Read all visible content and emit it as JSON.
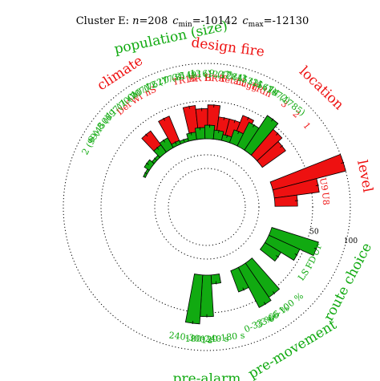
{
  "title_parts": {
    "prefix": "Cluster E: ",
    "n_label": "n",
    "n_value": "=208",
    "cmin_label": "c",
    "cmin_sub": "min",
    "cmin_value": "=-10142",
    "cmax_label": "c",
    "cmax_sub": "max",
    "cmax_value": "=-12130"
  },
  "colors": {
    "red": "#ee1111",
    "green": "#11aa11"
  },
  "chart_data": {
    "type": "radial-bar",
    "title": "Cluster E: n=208 cmin=-10142 cmax=-12130",
    "radial_scale": {
      "min": 0,
      "max": 100,
      "tick_labels": [
        "50",
        "100"
      ]
    },
    "groups": [
      {
        "name": "climate",
        "color": "red",
        "categories": [
          "Def",
          "Wi",
          "nS"
        ],
        "values": [
          35,
          10,
          40
        ]
      },
      {
        "name": "design fire",
        "color": "red",
        "categories": [
          "TR16",
          "BR H",
          "BR F",
          "Retail",
          "Lugg",
          "TRIn"
        ],
        "values": [
          45,
          40,
          45,
          30,
          30,
          40
        ]
      },
      {
        "name": "location",
        "color": "red",
        "categories": [
          "3",
          "2",
          "1"
        ],
        "values": [
          55,
          45,
          38
        ]
      },
      {
        "name": "level",
        "color": "red",
        "categories": [
          "CL",
          "U9",
          "U8"
        ],
        "values": [
          100,
          60,
          30
        ]
      },
      {
        "name": "route choice",
        "color": "green",
        "categories": [
          "UF",
          "FD",
          "LS"
        ],
        "values": [
          65,
          45,
          25
        ]
      },
      {
        "name": "pre-movement",
        "color": "green",
        "categories": [
          "66-100 %",
          "33-66 %",
          "0-33 %"
        ],
        "values": [
          55,
          60,
          30
        ]
      },
      {
        "name": "pre-alarm",
        "color": "green",
        "categories": [
          "120-180 s",
          "180-240 s",
          "240-300 s"
        ],
        "values": [
          12,
          55,
          65
        ]
      },
      {
        "name": "population (size)",
        "color": "green",
        "categories": [
          "2 (99)",
          "6 (450)",
          "8 (697)",
          "11 (700)",
          "1 (707)",
          "10 (762)",
          "12 (773)",
          "0 (814)",
          "5 (916)",
          "13 (1237)",
          "9 (1284)",
          "7 (1532)",
          "3 (1567)",
          "4 (1672)",
          "14 (1785)"
        ],
        "values": [
          3,
          8,
          4,
          12,
          15,
          5,
          4,
          10,
          15,
          18,
          12,
          8,
          18,
          35,
          55
        ]
      }
    ]
  }
}
